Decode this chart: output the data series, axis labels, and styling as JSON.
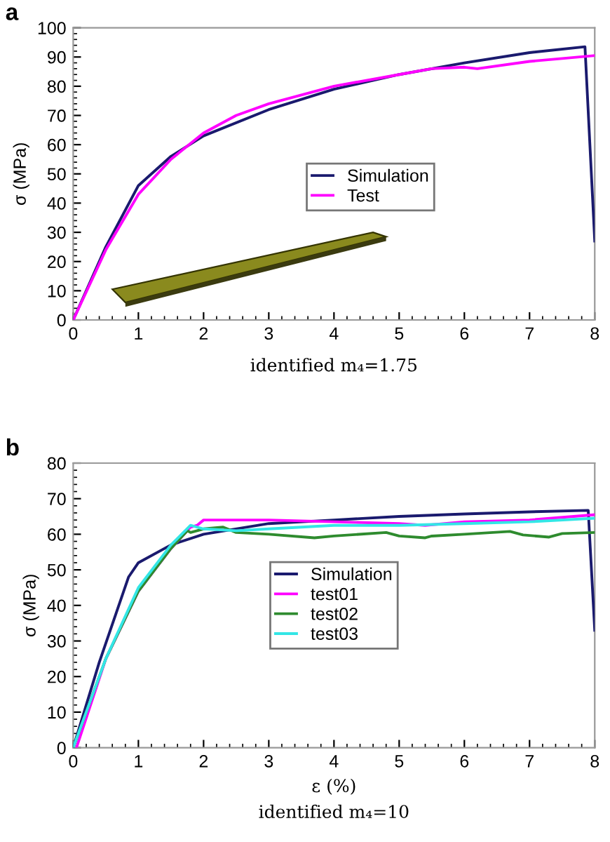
{
  "chart_data": [
    {
      "type": "line",
      "title": "a",
      "ylabel": "σ (MPa)",
      "annotations": [
        "identified m₄=1.75"
      ],
      "xlim": [
        0,
        8
      ],
      "ylim": [
        0,
        100
      ],
      "xticks": [
        0,
        1,
        2,
        3,
        4,
        5,
        6,
        7,
        8
      ],
      "yticks": [
        0,
        10,
        20,
        30,
        40,
        50,
        60,
        70,
        80,
        90,
        100
      ],
      "legend": "center",
      "grid": false,
      "series": [
        {
          "name": "Simulation",
          "color": "#1a1a6e",
          "x": [
            0,
            0.5,
            1,
            1.5,
            2,
            3,
            4,
            5,
            6,
            7,
            7.85,
            8
          ],
          "values": [
            0,
            25,
            46,
            56,
            63,
            72,
            79,
            84,
            88,
            91.5,
            93.5,
            27
          ]
        },
        {
          "name": "Test",
          "color": "#ff00ff",
          "x": [
            0,
            0.5,
            1,
            1.5,
            2,
            2.5,
            3,
            3.5,
            4,
            5,
            5.5,
            6,
            6.2,
            7,
            7.5,
            8
          ],
          "values": [
            0,
            24,
            43,
            55,
            64,
            70,
            74,
            77,
            80,
            84,
            86,
            86.5,
            86,
            88.5,
            89.5,
            90.5
          ]
        }
      ]
    },
    {
      "type": "line",
      "title": "b",
      "xlabel": "ε (%)",
      "ylabel": "σ (MPa)",
      "annotations": [
        "identified m₄=10"
      ],
      "xlim": [
        0,
        8
      ],
      "ylim": [
        0,
        80
      ],
      "xticks": [
        0,
        1,
        2,
        3,
        4,
        5,
        6,
        7,
        8
      ],
      "yticks": [
        0,
        10,
        20,
        30,
        40,
        50,
        60,
        70,
        80
      ],
      "legend": "center",
      "grid": false,
      "series": [
        {
          "name": "Simulation",
          "color": "#1a1a6e",
          "x": [
            0,
            0.4,
            0.85,
            1,
            1.5,
            2,
            3,
            4,
            5,
            6,
            7,
            7.9,
            8
          ],
          "values": [
            0,
            24,
            48,
            52,
            57,
            60,
            63,
            64,
            65,
            65.7,
            66.3,
            66.7,
            33
          ]
        },
        {
          "name": "test01",
          "color": "#ff00ff",
          "x": [
            0.05,
            0.5,
            1,
            1.5,
            1.8,
            1.9,
            2,
            3,
            4,
            5,
            5.4,
            6,
            7,
            8
          ],
          "values": [
            0,
            25,
            44,
            56,
            62,
            62.5,
            64,
            64,
            63.5,
            63,
            62.5,
            63.5,
            64,
            65.5
          ]
        },
        {
          "name": "test02",
          "color": "#2e8b2e",
          "x": [
            0,
            0.5,
            1,
            1.5,
            1.75,
            1.8,
            2,
            2.3,
            2.5,
            3,
            3.7,
            4,
            4.8,
            5,
            5.4,
            5.5,
            6,
            6.7,
            6.9,
            7.3,
            7.5,
            8
          ],
          "values": [
            0,
            25,
            44,
            56,
            61,
            60.5,
            61.5,
            62,
            60.5,
            60,
            59,
            59.5,
            60.5,
            59.5,
            59,
            59.5,
            60,
            60.8,
            59.8,
            59.2,
            60.2,
            60.5
          ]
        },
        {
          "name": "test03",
          "color": "#33e6e6",
          "x": [
            0,
            0.5,
            1,
            1.5,
            1.8,
            2,
            2.5,
            3,
            4,
            5,
            6,
            7,
            8
          ],
          "values": [
            0,
            25,
            45,
            57,
            62.5,
            61.5,
            61,
            61.5,
            62.5,
            62.5,
            63,
            63.5,
            64.5
          ]
        }
      ]
    }
  ]
}
